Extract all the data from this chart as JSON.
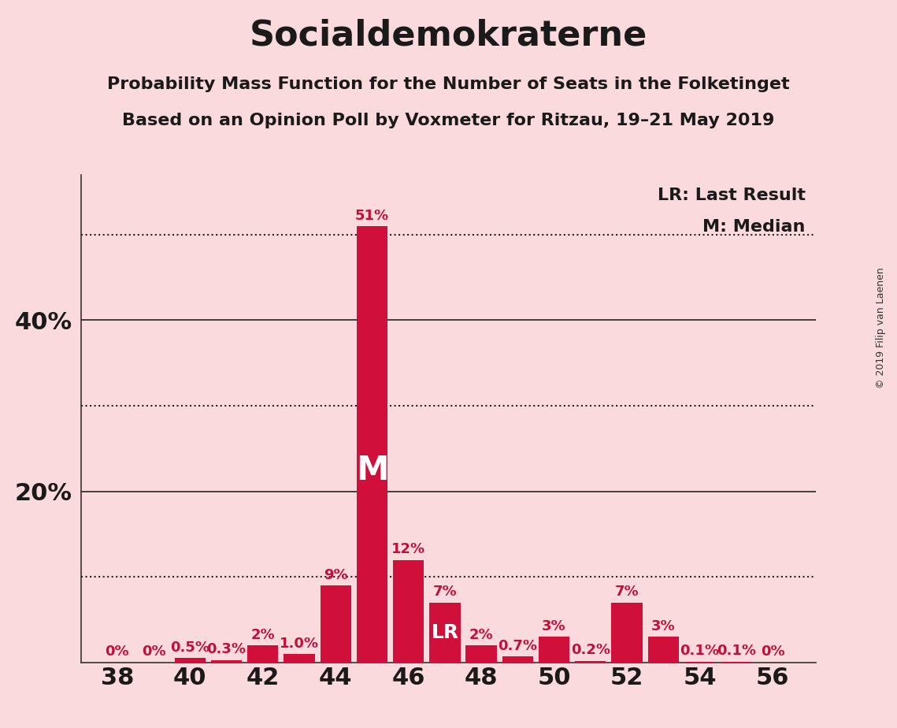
{
  "title": "Socialdemokraterne",
  "subtitle1": "Probability Mass Function for the Number of Seats in the Folketinget",
  "subtitle2": "Based on an Opinion Poll by Voxmeter for Ritzau, 19–21 May 2019",
  "copyright": "© 2019 Filip van Laenen",
  "seats": [
    38,
    39,
    40,
    41,
    42,
    43,
    44,
    45,
    46,
    47,
    48,
    49,
    50,
    51,
    52,
    53,
    54,
    55,
    56
  ],
  "probabilities": [
    0.0,
    0.0,
    0.5,
    0.3,
    2.0,
    1.0,
    9.0,
    51.0,
    12.0,
    7.0,
    2.0,
    0.7,
    3.0,
    0.2,
    7.0,
    3.0,
    0.1,
    0.1,
    0.0
  ],
  "labels": [
    "0%",
    "0%",
    "0.5%",
    "0.3%",
    "2%",
    "1.0%",
    "9%",
    "51%",
    "12%",
    "7%",
    "2%",
    "0.7%",
    "3%",
    "0.2%",
    "7%",
    "3%",
    "0.1%",
    "0.1%",
    "0%"
  ],
  "bar_color": "#D0103A",
  "bg_color": "#FADADD",
  "text_color": "#1a1a1a",
  "bar_label_color": "#C0103A",
  "median_seat": 45,
  "lr_seat": 47,
  "ylim": [
    0,
    57
  ],
  "xlim": [
    37.0,
    57.2
  ],
  "xticks": [
    38,
    40,
    42,
    44,
    46,
    48,
    50,
    52,
    54,
    56
  ],
  "bar_width": 0.85,
  "title_fontsize": 32,
  "subtitle_fontsize": 16,
  "axis_fontsize": 22,
  "bar_label_fontsize": 13,
  "legend_fontsize": 16,
  "inside_label_fontsize_M": 30,
  "inside_label_fontsize_LR": 18
}
